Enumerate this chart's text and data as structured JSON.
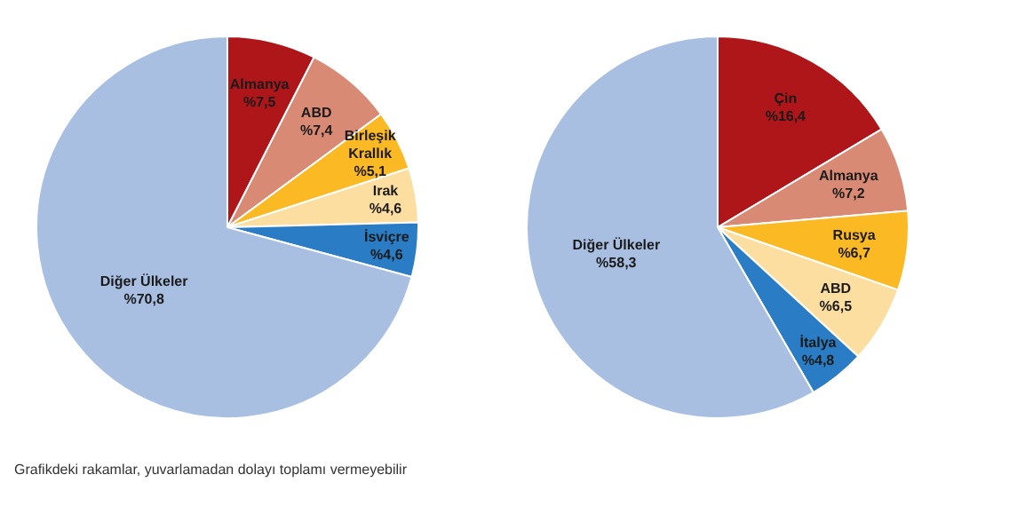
{
  "chart_data": [
    {
      "type": "pie",
      "categories": [
        "Almanya",
        "ABD",
        "Birleşik Krallık",
        "Irak",
        "İsviçre",
        "Diğer Ülkeler"
      ],
      "values": [
        7.5,
        7.4,
        5.1,
        4.6,
        4.6,
        70.8
      ],
      "value_labels": [
        "%7,5",
        "%7,4",
        "%5,1",
        "%4,6",
        "%4,6",
        "%70,8"
      ],
      "colors": [
        "#ae1619",
        "#d98a74",
        "#fbb923",
        "#fddea1",
        "#2a7cc4",
        "#a8bfe2"
      ],
      "legend": false,
      "annotations": [
        "Grafikdeki rakamlar, yuvarlamadan dolayı toplamı vermeyebilir"
      ]
    },
    {
      "type": "pie",
      "categories": [
        "Çin",
        "Almanya",
        "Rusya",
        "ABD",
        "İtalya",
        "Diğer Ülkeler"
      ],
      "values": [
        16.4,
        7.2,
        6.7,
        6.5,
        4.8,
        58.3
      ],
      "value_labels": [
        "%16,4",
        "%7,2",
        "%6,7",
        "%6,5",
        "%4,8",
        "%58,3"
      ],
      "colors": [
        "#ae1619",
        "#d98a74",
        "#fbb923",
        "#fddea1",
        "#2a7cc4",
        "#a8bfe2"
      ],
      "legend": false
    }
  ]
}
